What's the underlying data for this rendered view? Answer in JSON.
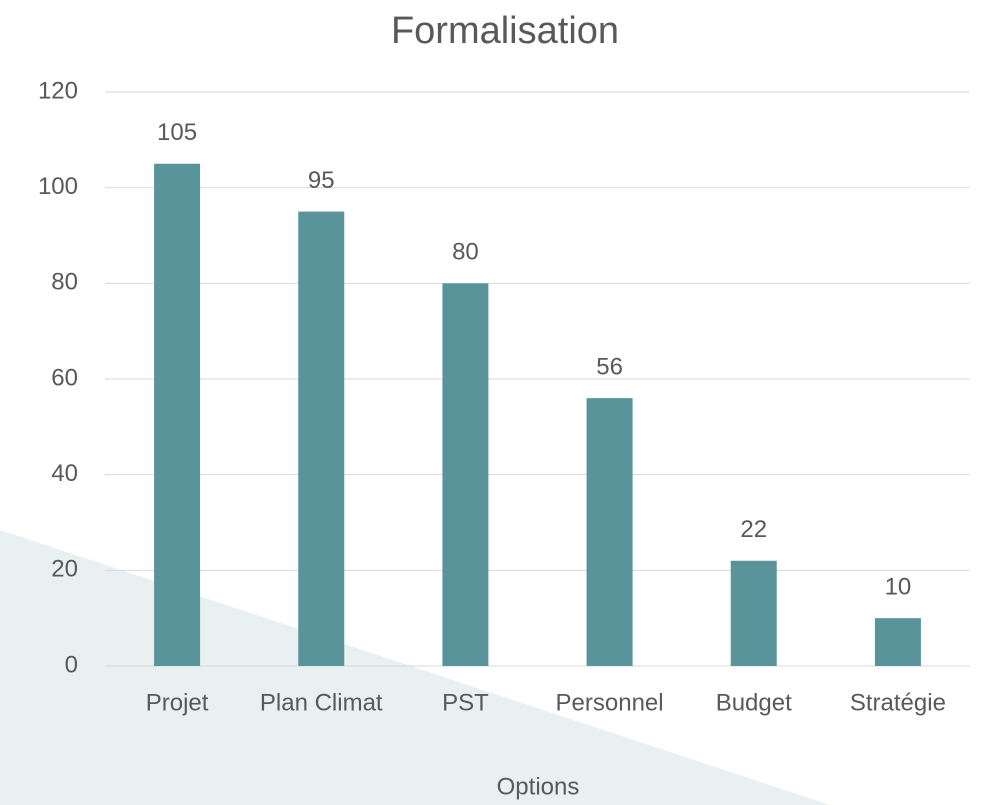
{
  "chart_data": {
    "type": "bar",
    "title": "Formalisation",
    "x_label": "Options",
    "categories": [
      "Projet",
      "Plan Climat",
      "PST",
      "Personnel",
      "Budget",
      "Stratégie"
    ],
    "values": [
      105,
      95,
      80,
      56,
      22,
      10
    ],
    "color": "#5a949b",
    "ylim": [
      0,
      120
    ],
    "yticks": [
      0,
      20,
      40,
      60,
      80,
      100,
      120
    ],
    "grid": true
  }
}
